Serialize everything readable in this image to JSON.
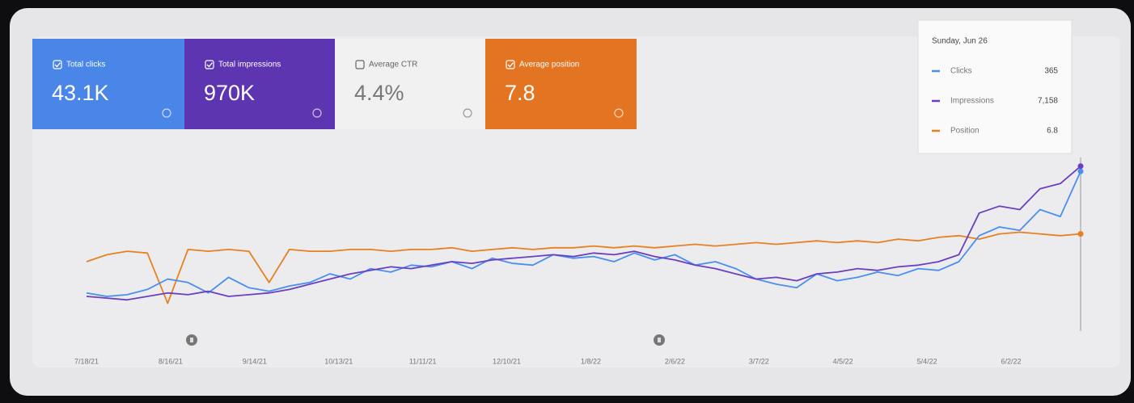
{
  "cards": [
    {
      "label": "Total clicks",
      "value": "43.1K",
      "checked": true,
      "color": "#4a86e8"
    },
    {
      "label": "Total impressions",
      "value": "970K",
      "checked": true,
      "color": "#5e35b1"
    },
    {
      "label": "Average CTR",
      "value": "4.4%",
      "checked": false,
      "color": "#f1f1f2"
    },
    {
      "label": "Average position",
      "value": "7.8",
      "checked": true,
      "color": "#e37422"
    }
  ],
  "tooltip": {
    "title": "Sunday, Jun 26",
    "values": [
      "365",
      "7,158",
      "6.8"
    ]
  },
  "chart_data": {
    "type": "line",
    "x": [
      0,
      7,
      14,
      21,
      28,
      35,
      42,
      49,
      56,
      63,
      70,
      77,
      84,
      91,
      98,
      105,
      112,
      119,
      126,
      133,
      140,
      147,
      154,
      161,
      168,
      175,
      182,
      189,
      196,
      203,
      210,
      217,
      224,
      231,
      238,
      245,
      252,
      259,
      266,
      273,
      280,
      287,
      294,
      301,
      308,
      315,
      322,
      329,
      336,
      343
    ],
    "xlim": [
      0,
      343
    ],
    "xticks": [
      {
        "value": 0,
        "label": "7/18/21"
      },
      {
        "value": 29,
        "label": "8/16/21"
      },
      {
        "value": 58,
        "label": "9/14/21"
      },
      {
        "value": 87,
        "label": "10/13/21"
      },
      {
        "value": 116,
        "label": "11/11/21"
      },
      {
        "value": 145,
        "label": "12/10/21"
      },
      {
        "value": 174,
        "label": "1/8/22"
      },
      {
        "value": 203,
        "label": "2/6/22"
      },
      {
        "value": 232,
        "label": "3/7/22"
      },
      {
        "value": 261,
        "label": "4/5/22"
      },
      {
        "value": 290,
        "label": "5/4/22"
      },
      {
        "value": 319,
        "label": "6/2/22"
      }
    ],
    "ylim": [
      0,
      100
    ],
    "series": [
      {
        "name": "Clicks",
        "color": "#4a8ff0",
        "values": [
          22,
          20,
          21,
          24,
          30,
          28,
          22,
          31,
          25,
          23,
          26,
          28,
          33,
          30,
          36,
          34,
          38,
          37,
          40,
          36,
          42,
          39,
          38,
          44,
          42,
          43,
          40,
          45,
          41,
          44,
          38,
          40,
          36,
          30,
          27,
          25,
          33,
          29,
          31,
          34,
          32,
          36,
          35,
          40,
          55,
          60,
          58,
          70,
          66,
          92
        ]
      },
      {
        "name": "Impressions",
        "color": "#6a3fc0",
        "values": [
          20,
          19,
          18,
          20,
          22,
          21,
          23,
          20,
          21,
          22,
          24,
          27,
          30,
          33,
          35,
          37,
          36,
          38,
          40,
          39,
          41,
          42,
          43,
          44,
          43,
          45,
          44,
          46,
          43,
          41,
          38,
          36,
          33,
          30,
          31,
          29,
          33,
          34,
          36,
          35,
          37,
          38,
          40,
          44,
          68,
          72,
          70,
          82,
          85,
          95
        ]
      },
      {
        "name": "Position",
        "color": "#e8801f",
        "values": [
          40,
          44,
          46,
          45,
          16,
          47,
          46,
          47,
          46,
          28,
          47,
          46,
          46,
          47,
          47,
          46,
          47,
          47,
          48,
          46,
          47,
          48,
          47,
          48,
          48,
          49,
          48,
          49,
          48,
          49,
          50,
          49,
          50,
          51,
          50,
          51,
          52,
          51,
          52,
          51,
          53,
          52,
          54,
          55,
          53,
          56,
          57,
          56,
          55,
          56
        ]
      }
    ]
  }
}
